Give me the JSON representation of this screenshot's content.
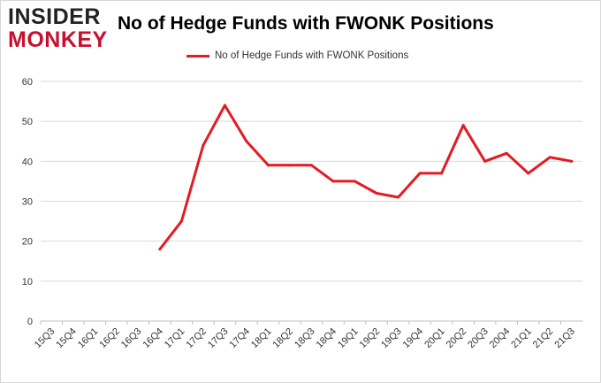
{
  "logo": {
    "line1": "INSIDER",
    "line2": "MONKEY"
  },
  "chart_data": {
    "type": "line",
    "title": "No of Hedge Funds with FWONK Positions",
    "xlabel": "",
    "ylabel": "",
    "ylim": [
      0,
      60
    ],
    "yticks": [
      0,
      10,
      20,
      30,
      40,
      50,
      60
    ],
    "grid": true,
    "legend_position": "top-center",
    "categories": [
      "15Q3",
      "15Q4",
      "16Q1",
      "16Q2",
      "16Q3",
      "16Q4",
      "17Q1",
      "17Q2",
      "17Q3",
      "17Q4",
      "18Q1",
      "18Q2",
      "18Q3",
      "18Q4",
      "19Q1",
      "19Q2",
      "19Q3",
      "19Q4",
      "20Q1",
      "20Q2",
      "20Q3",
      "20Q4",
      "21Q1",
      "21Q2",
      "21Q3"
    ],
    "series": [
      {
        "name": "No of Hedge Funds with FWONK Positions",
        "color": "#e31b23",
        "values": [
          null,
          null,
          null,
          null,
          null,
          18,
          25,
          44,
          54,
          45,
          39,
          39,
          39,
          35,
          35,
          32,
          31,
          37,
          37,
          49,
          40,
          42,
          37,
          41,
          40
        ]
      }
    ]
  }
}
